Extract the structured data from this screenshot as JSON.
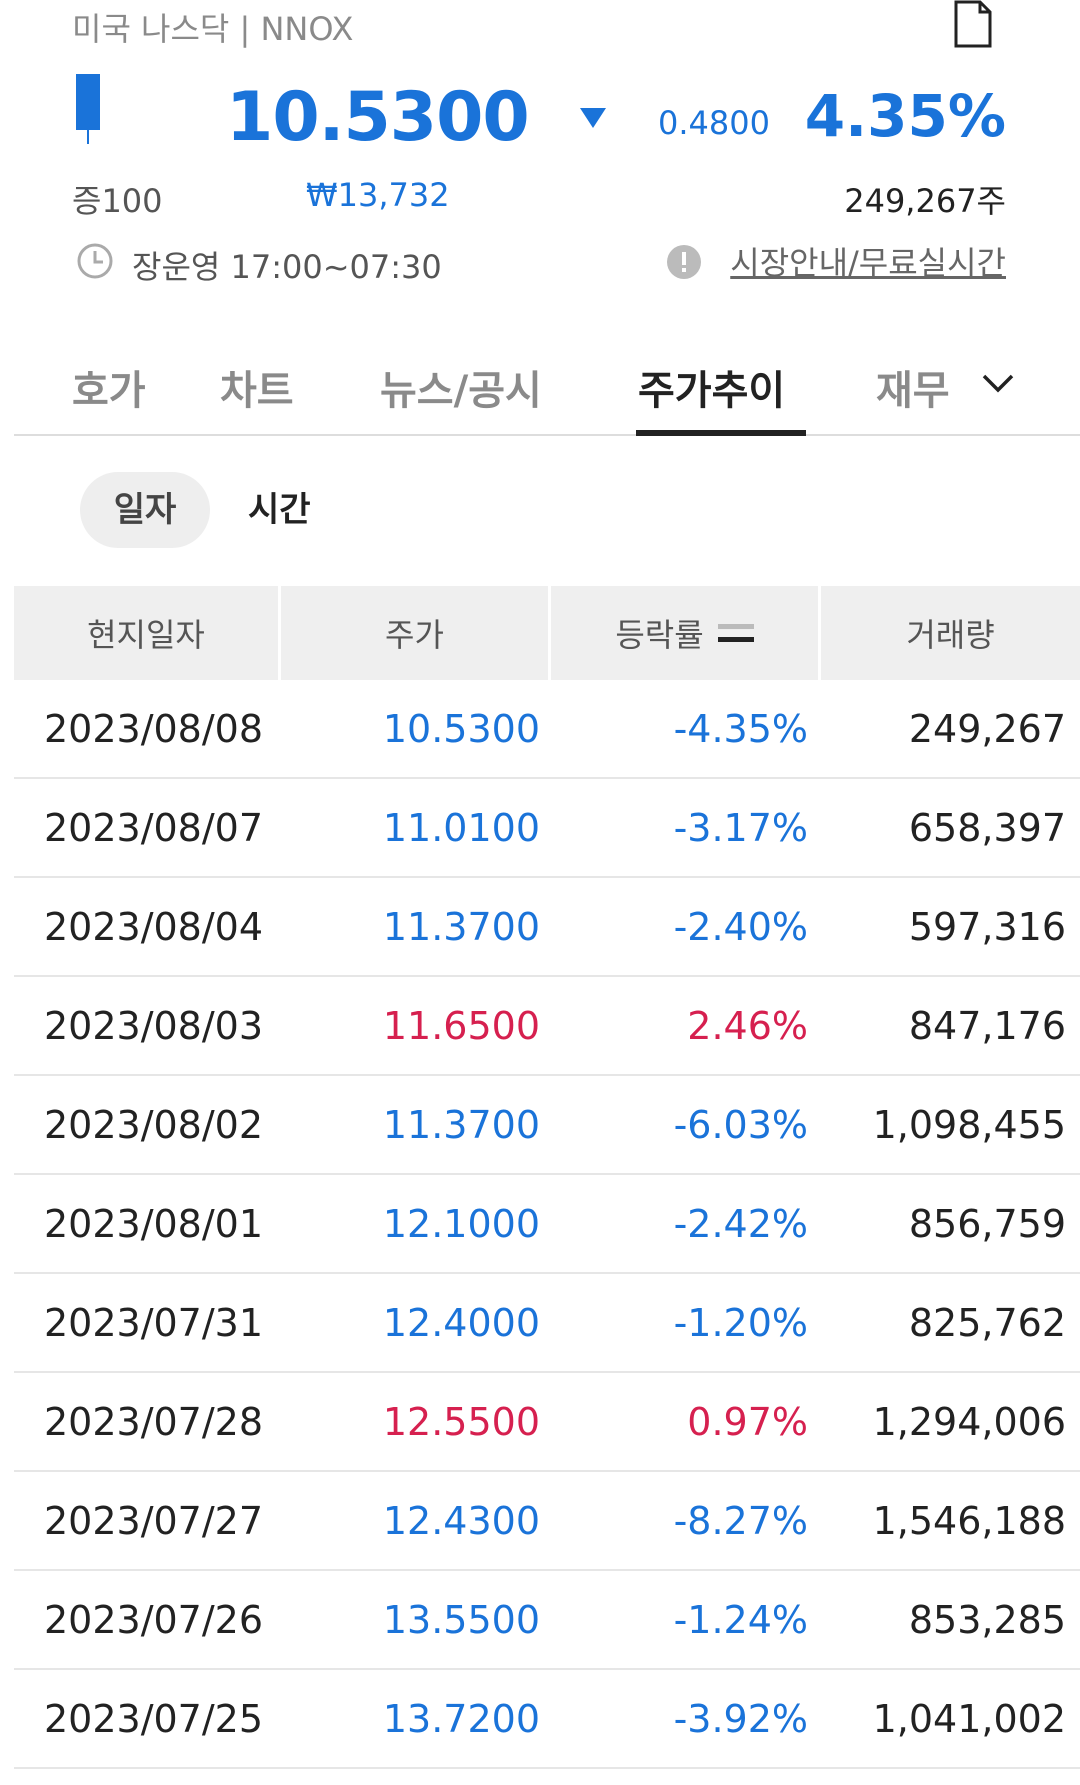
{
  "header": {
    "market_ticker": "미국 나스닥 | NNOX",
    "price": "10.5300",
    "change_abs": "0.4800",
    "change_pct": "4.35%",
    "margin": "증100",
    "krw_price": "₩13,732",
    "volume": "249,267주",
    "trading_hours": "장운영 17:00~07:30",
    "market_info_link": "시장안내/무료실시간"
  },
  "colors": {
    "down": "#1a73d9",
    "up": "#d6204f"
  },
  "tabs": [
    {
      "label": "호가"
    },
    {
      "label": "차트"
    },
    {
      "label": "뉴스/공시"
    },
    {
      "label": "주가추이"
    },
    {
      "label": "재무"
    }
  ],
  "segments": {
    "day": "일자",
    "time": "시간"
  },
  "table": {
    "headers": [
      "현지일자",
      "주가",
      "등락률",
      "거래량"
    ],
    "rows": [
      {
        "date": "2023/08/08",
        "price": "10.5300",
        "pct": "-4.35%",
        "volume": "249,267",
        "dir": "down"
      },
      {
        "date": "2023/08/07",
        "price": "11.0100",
        "pct": "-3.17%",
        "volume": "658,397",
        "dir": "down"
      },
      {
        "date": "2023/08/04",
        "price": "11.3700",
        "pct": "-2.40%",
        "volume": "597,316",
        "dir": "down"
      },
      {
        "date": "2023/08/03",
        "price": "11.6500",
        "pct": "2.46%",
        "volume": "847,176",
        "dir": "up"
      },
      {
        "date": "2023/08/02",
        "price": "11.3700",
        "pct": "-6.03%",
        "volume": "1,098,455",
        "dir": "down"
      },
      {
        "date": "2023/08/01",
        "price": "12.1000",
        "pct": "-2.42%",
        "volume": "856,759",
        "dir": "down"
      },
      {
        "date": "2023/07/31",
        "price": "12.4000",
        "pct": "-1.20%",
        "volume": "825,762",
        "dir": "down"
      },
      {
        "date": "2023/07/28",
        "price": "12.5500",
        "pct": "0.97%",
        "volume": "1,294,006",
        "dir": "up"
      },
      {
        "date": "2023/07/27",
        "price": "12.4300",
        "pct": "-8.27%",
        "volume": "1,546,188",
        "dir": "down"
      },
      {
        "date": "2023/07/26",
        "price": "13.5500",
        "pct": "-1.24%",
        "volume": "853,285",
        "dir": "down"
      },
      {
        "date": "2023/07/25",
        "price": "13.7200",
        "pct": "-3.92%",
        "volume": "1,041,002",
        "dir": "down"
      }
    ]
  }
}
